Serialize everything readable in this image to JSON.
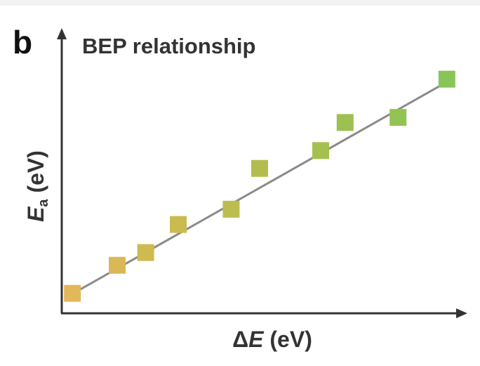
{
  "panel_label": "b",
  "chart_data": {
    "type": "scatter",
    "title": "BEP relationship",
    "xlabel": {
      "prefix": "Δ",
      "var": "E",
      "unit": " (eV)"
    },
    "ylabel": {
      "var": "E",
      "sub": "a",
      "unit": " (eV)"
    },
    "xlim": [
      0,
      10
    ],
    "ylim": [
      0,
      10
    ],
    "grid": false,
    "legend": "none",
    "trendline": {
      "x": [
        0.2,
        9.5
      ],
      "y": [
        0.5,
        8.9
      ]
    },
    "points": [
      {
        "x": 0.4,
        "y": 0.7,
        "color": "#e2b85a"
      },
      {
        "x": 1.5,
        "y": 1.8,
        "color": "#d8b955"
      },
      {
        "x": 2.2,
        "y": 2.3,
        "color": "#cfba52"
      },
      {
        "x": 3.0,
        "y": 3.4,
        "color": "#c9bb50"
      },
      {
        "x": 4.3,
        "y": 4.0,
        "color": "#bcbd4f"
      },
      {
        "x": 5.0,
        "y": 5.6,
        "color": "#b2bd4d"
      },
      {
        "x": 6.5,
        "y": 6.3,
        "color": "#a5c04f"
      },
      {
        "x": 7.1,
        "y": 7.4,
        "color": "#9cc150"
      },
      {
        "x": 8.4,
        "y": 7.6,
        "color": "#93c352"
      },
      {
        "x": 9.6,
        "y": 9.1,
        "color": "#89c458"
      }
    ]
  }
}
